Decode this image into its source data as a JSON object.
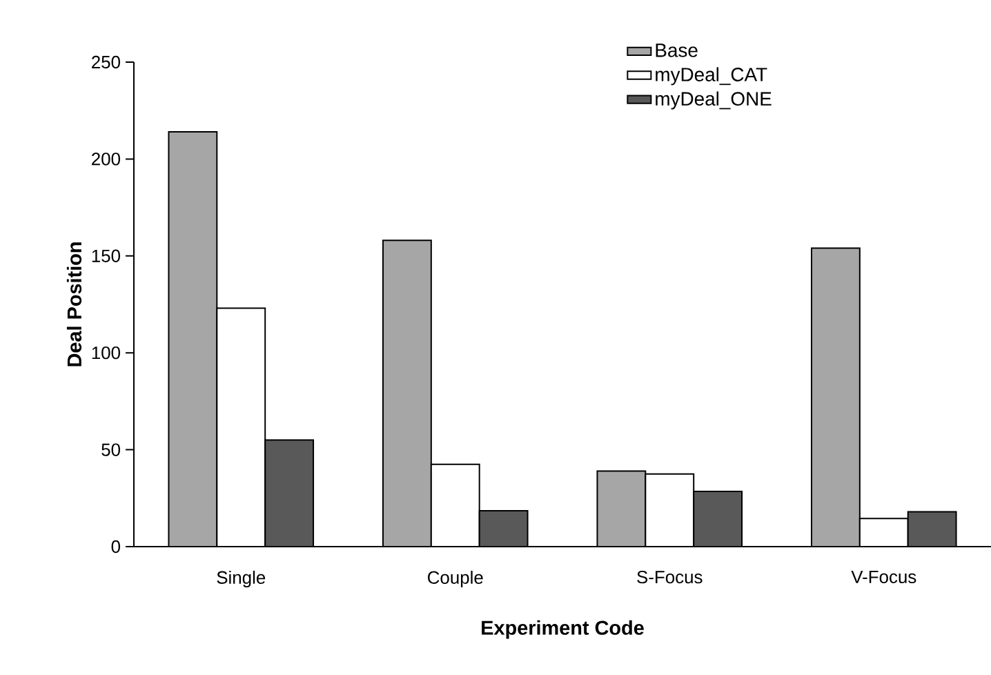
{
  "chart_data": {
    "type": "bar",
    "xlabel": "Experiment Code",
    "ylabel": "Deal Position",
    "categories": [
      "Single",
      "Couple",
      "S-Focus",
      "V-Focus"
    ],
    "series": [
      {
        "name": "Base",
        "color": "#a6a6a6",
        "values": [
          214,
          158,
          39,
          154
        ]
      },
      {
        "name": "myDeal_CAT",
        "color": "#ffffff",
        "values": [
          123,
          42.5,
          37.5,
          14.5
        ]
      },
      {
        "name": "myDeal_ONE",
        "color": "#595959",
        "values": [
          55,
          18.5,
          28.5,
          18
        ]
      }
    ],
    "ylim": [
      0,
      250
    ],
    "yticks": [
      0,
      50,
      100,
      150,
      200,
      250
    ],
    "legend": "top right"
  }
}
